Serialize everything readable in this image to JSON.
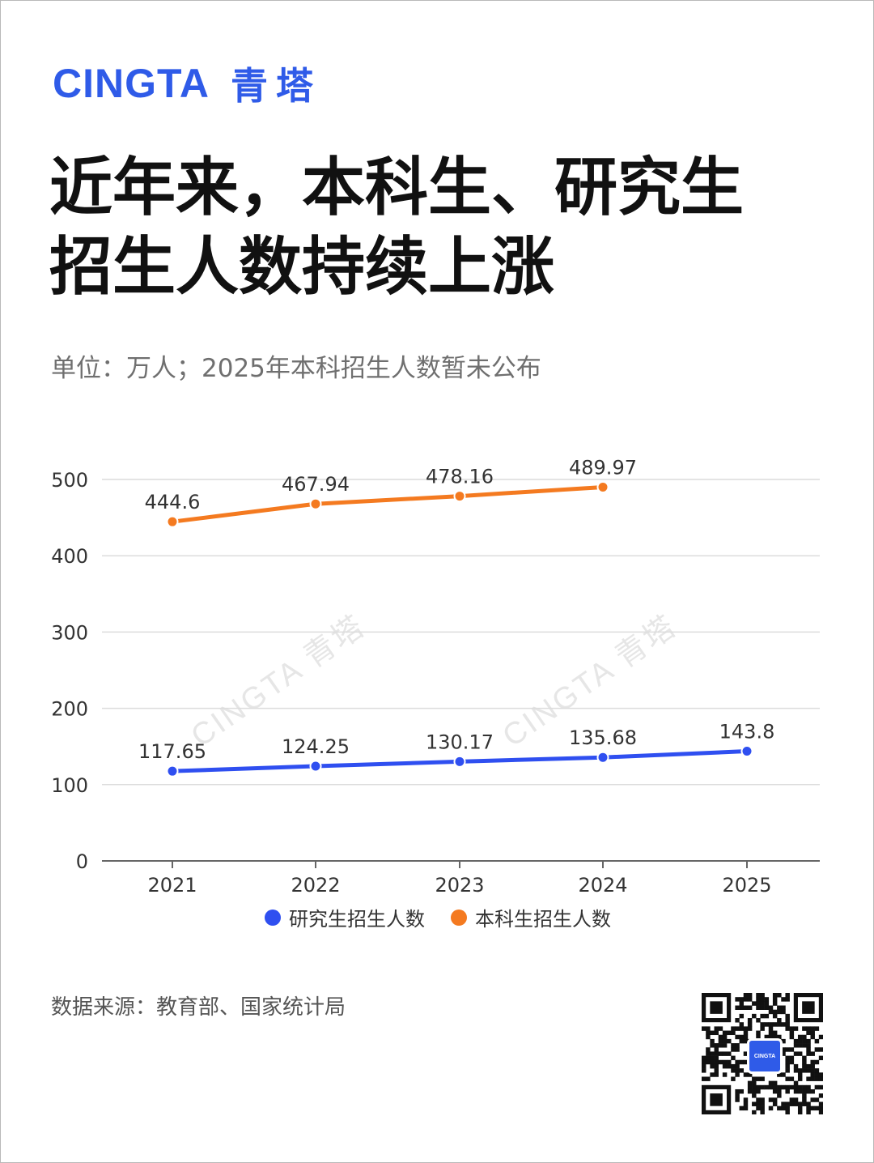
{
  "brand": {
    "name_en": "CINGTA",
    "name_zh": "青塔"
  },
  "title_line1": "近年来，本科生、研究生",
  "title_line2": "招生人数持续上涨",
  "subtitle": "单位：万人；2025年本科招生人数暂未公布",
  "source": "数据来源：教育部、国家统计局",
  "watermark": "CINGTA 青塔",
  "qr_badge": "CINGTA",
  "colors": {
    "brand": "#2f5be8",
    "graduate": "#2f4ff0",
    "undergraduate": "#f47a20"
  },
  "chart_data": {
    "type": "line",
    "categories": [
      "2021",
      "2022",
      "2023",
      "2024",
      "2025"
    ],
    "yticks": [
      "0",
      "100",
      "200",
      "300",
      "400",
      "500"
    ],
    "ylim": [
      0,
      500
    ],
    "grid": true,
    "legend_position": "bottom",
    "series": [
      {
        "name": "研究生招生人数",
        "color": "#2f4ff0",
        "values": [
          117.65,
          124.25,
          130.17,
          135.68,
          143.8
        ],
        "labels": [
          "117.65",
          "124.25",
          "130.17",
          "135.68",
          "143.8"
        ]
      },
      {
        "name": "本科生招生人数",
        "color": "#f47a20",
        "values": [
          444.6,
          467.94,
          478.16,
          489.97,
          null
        ],
        "labels": [
          "444.6",
          "467.94",
          "478.16",
          "489.97",
          ""
        ]
      }
    ]
  }
}
